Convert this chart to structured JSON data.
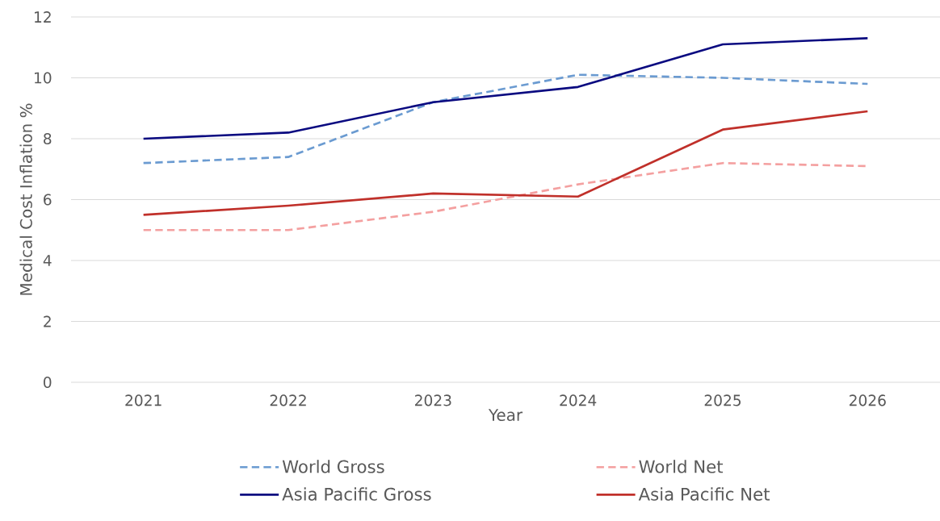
{
  "chart_data": {
    "type": "line",
    "xlabel": "Year",
    "ylabel": "Medical Cost Inflation %",
    "categories": [
      "2021",
      "2022",
      "2023",
      "2024",
      "2025",
      "2026"
    ],
    "series": [
      {
        "name": "World Gross",
        "color": "#6b9bd1",
        "line_style": "dashed",
        "values": [
          7.2,
          7.4,
          9.2,
          10.1,
          10.0,
          9.8
        ]
      },
      {
        "name": "World Net",
        "color": "#f4a0a0",
        "line_style": "dashed",
        "values": [
          5.0,
          5.0,
          5.6,
          6.5,
          7.2,
          7.1
        ]
      },
      {
        "name": "Asia Pacific Gross",
        "color": "#0a0a80",
        "line_style": "solid",
        "values": [
          8.0,
          8.2,
          9.2,
          9.7,
          11.1,
          11.3
        ]
      },
      {
        "name": "Asia Pacific Net",
        "color": "#c0302a",
        "line_style": "solid",
        "values": [
          5.5,
          5.8,
          6.2,
          6.1,
          8.3,
          8.9
        ]
      }
    ],
    "ylim": [
      0,
      12
    ],
    "yticks": [
      0,
      2,
      4,
      6,
      8,
      10,
      12
    ],
    "grid": "y",
    "legend": "bottom"
  }
}
